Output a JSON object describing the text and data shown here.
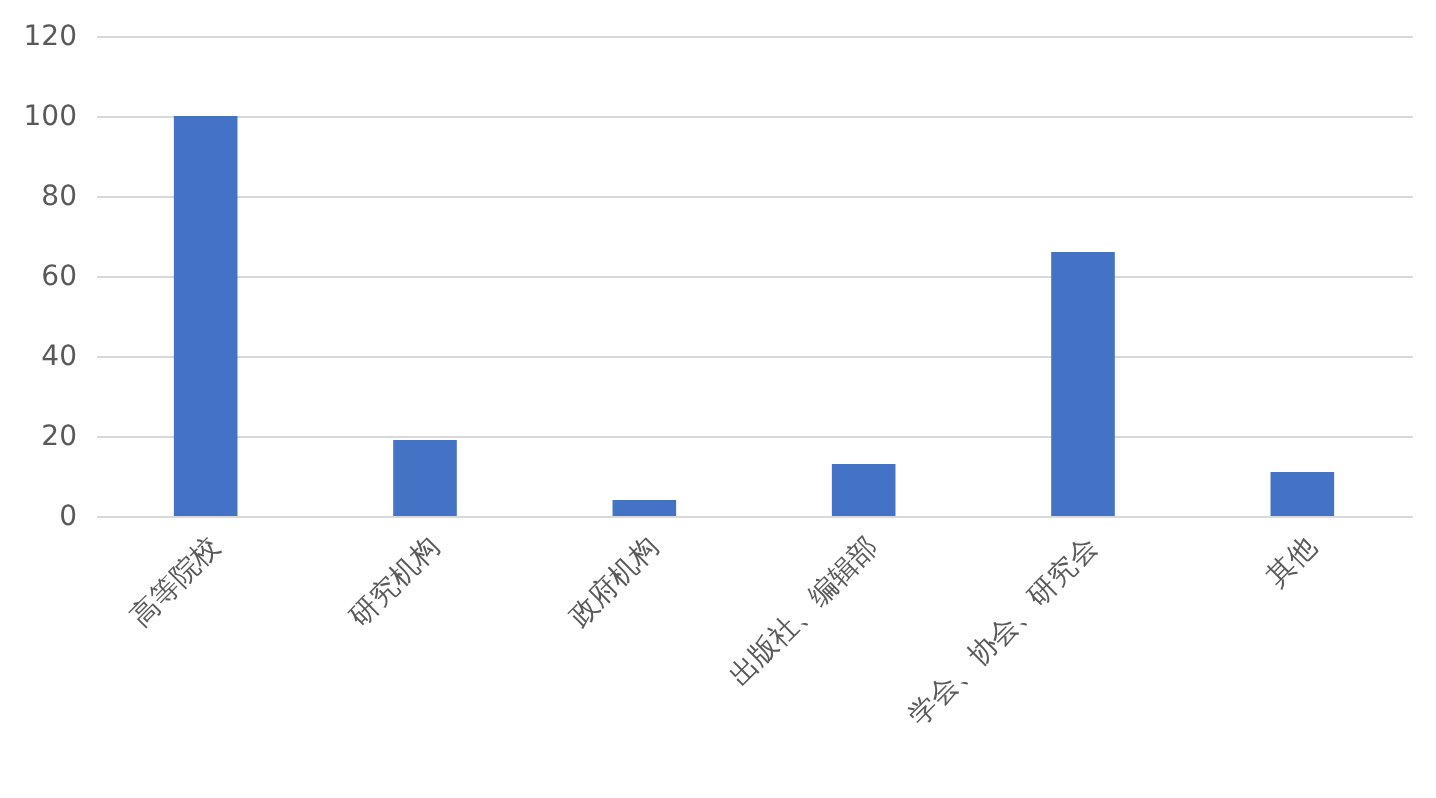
{
  "chart_data": {
    "type": "bar",
    "categories": [
      "高等院校",
      "研究机构",
      "政府机构",
      "出版社、编辑部",
      "学会、协会、研究会",
      "其他"
    ],
    "values": [
      100,
      19,
      4,
      13,
      66,
      11
    ],
    "color": "#4472c4",
    "ylim": [
      0,
      120
    ],
    "yticks": [
      0,
      20,
      40,
      60,
      80,
      100,
      120
    ],
    "grid": "y"
  }
}
